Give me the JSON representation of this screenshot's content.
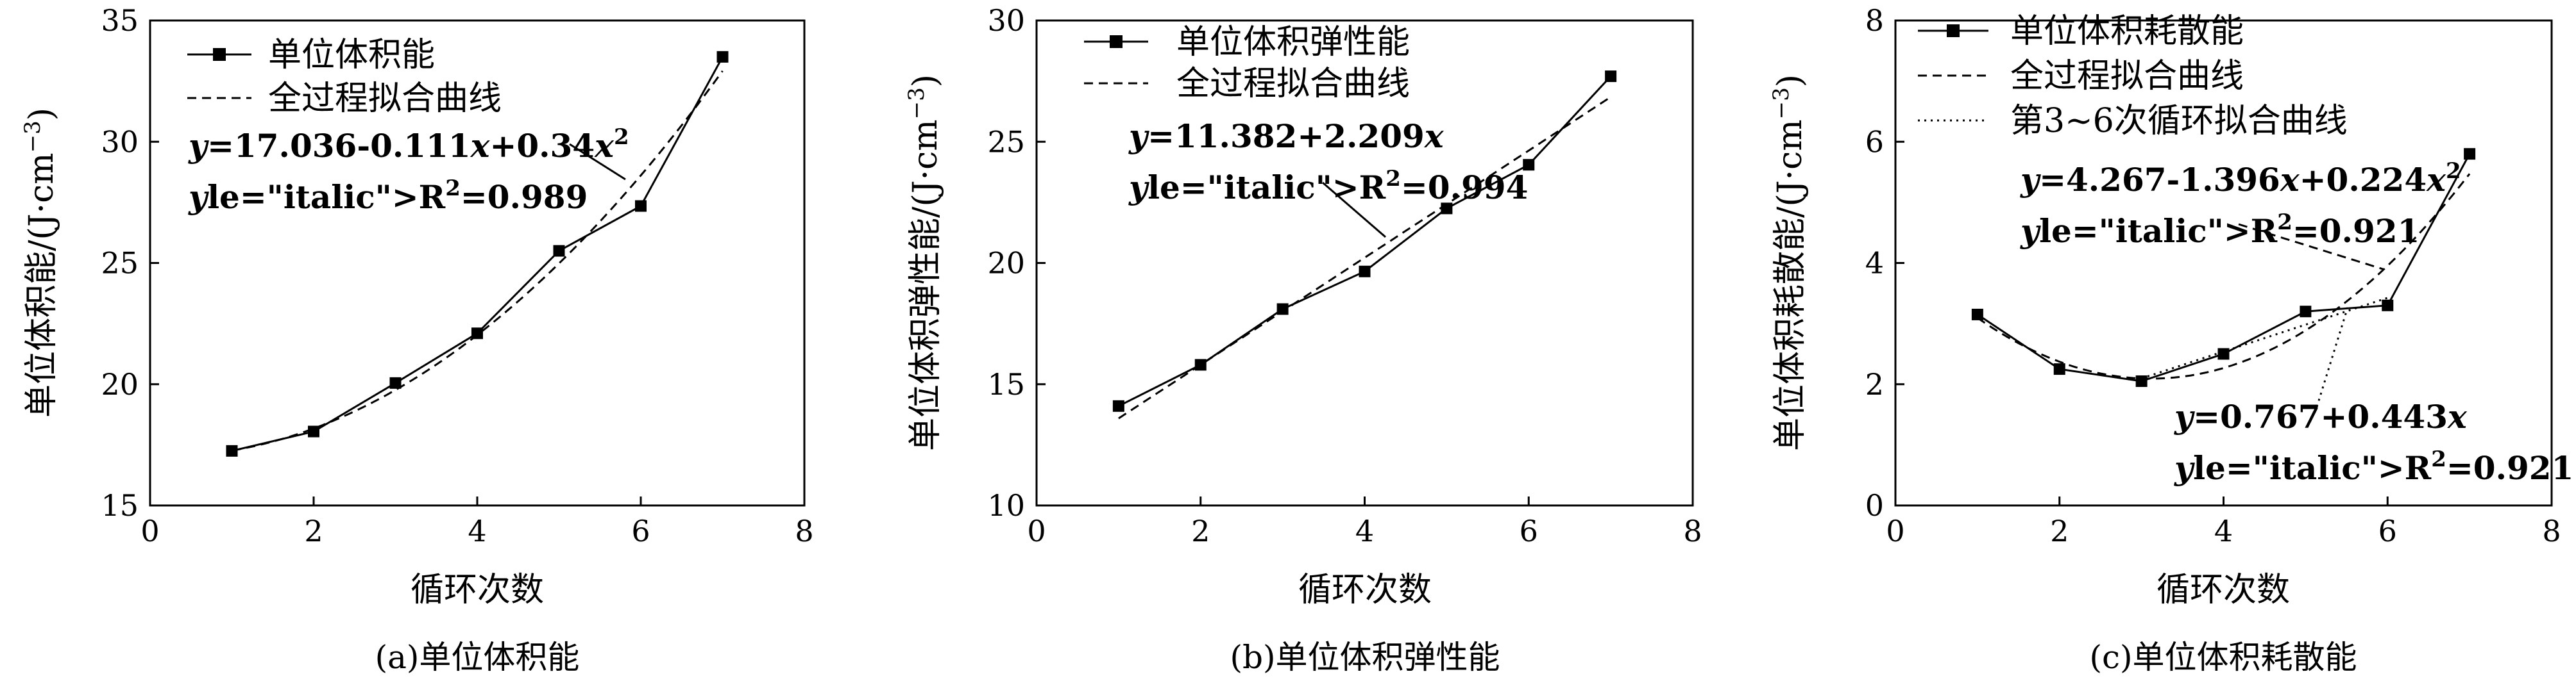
{
  "chart_data": [
    {
      "type": "line",
      "caption": "(a)单位体积能",
      "xlabel": "循环次数",
      "ylabel": "单位体积能/(J·cm⁻³)",
      "xlim": [
        0,
        8
      ],
      "ylim": [
        15,
        35
      ],
      "xticks": [
        "0",
        "2",
        "4",
        "6",
        "8"
      ],
      "yticks": [
        "15",
        "20",
        "25",
        "30",
        "35"
      ],
      "legend_position": "top-left",
      "series": [
        {
          "name": "单位体积能",
          "style": "solid-square",
          "x": [
            1,
            2,
            3,
            4,
            5,
            6,
            7
          ],
          "y": [
            17.25,
            18.05,
            20.05,
            22.1,
            25.5,
            27.35,
            33.5
          ]
        },
        {
          "name": "全过程拟合曲线",
          "style": "dashed",
          "fit": {
            "kind": "poly",
            "coef": [
              17.036,
              -0.111,
              0.34
            ],
            "x_range": [
              1,
              7
            ]
          }
        }
      ],
      "annotations": [
        {
          "equation": "y=17.036-0.111x+0.34x²",
          "r2": "R²=0.989"
        }
      ]
    },
    {
      "type": "line",
      "caption": "(b)单位体积弹性能",
      "xlabel": "循环次数",
      "ylabel": "单位体积弹性能/(J·cm⁻³)",
      "xlim": [
        0,
        8
      ],
      "ylim": [
        10,
        30
      ],
      "xticks": [
        "0",
        "2",
        "4",
        "6",
        "8"
      ],
      "yticks": [
        "10",
        "15",
        "20",
        "25",
        "30"
      ],
      "legend_position": "top-left",
      "series": [
        {
          "name": "单位体积弹性能",
          "style": "solid-square",
          "x": [
            1,
            2,
            3,
            4,
            5,
            6,
            7
          ],
          "y": [
            14.1,
            15.8,
            18.1,
            19.65,
            22.25,
            24.05,
            27.7
          ]
        },
        {
          "name": "全过程拟合曲线",
          "style": "dashed",
          "fit": {
            "kind": "poly",
            "coef": [
              11.382,
              2.209
            ],
            "x_range": [
              1,
              7
            ]
          }
        }
      ],
      "annotations": [
        {
          "equation": "y=11.382+2.209x",
          "r2": "R²=0.994"
        }
      ]
    },
    {
      "type": "line",
      "caption": "(c)单位体积耗散能",
      "xlabel": "循环次数",
      "ylabel": "单位体积耗散能/(J·cm⁻³)",
      "xlim": [
        0,
        8
      ],
      "ylim": [
        0,
        8
      ],
      "xticks": [
        "0",
        "2",
        "4",
        "6",
        "8"
      ],
      "yticks": [
        "0",
        "2",
        "4",
        "6",
        "8"
      ],
      "legend_position": "top-left",
      "series": [
        {
          "name": "单位体积耗散能",
          "style": "solid-square",
          "x": [
            1,
            2,
            3,
            4,
            5,
            6,
            7
          ],
          "y": [
            3.15,
            2.25,
            2.05,
            2.5,
            3.2,
            3.3,
            5.8
          ]
        },
        {
          "name": "全过程拟合曲线",
          "style": "dashed",
          "fit": {
            "kind": "poly",
            "coef": [
              4.267,
              -1.396,
              0.224
            ],
            "x_range": [
              1,
              7
            ]
          }
        },
        {
          "name": "第3~6次循环拟合曲线",
          "style": "dotted",
          "fit": {
            "kind": "poly",
            "coef": [
              0.767,
              0.443
            ],
            "x_range": [
              3,
              6
            ]
          }
        }
      ],
      "annotations": [
        {
          "equation": "y=4.267-1.396x+0.224x²",
          "r2": "R²=0.921"
        },
        {
          "equation": "y=0.767+0.443x",
          "r2": "R²=0.921"
        }
      ]
    }
  ]
}
